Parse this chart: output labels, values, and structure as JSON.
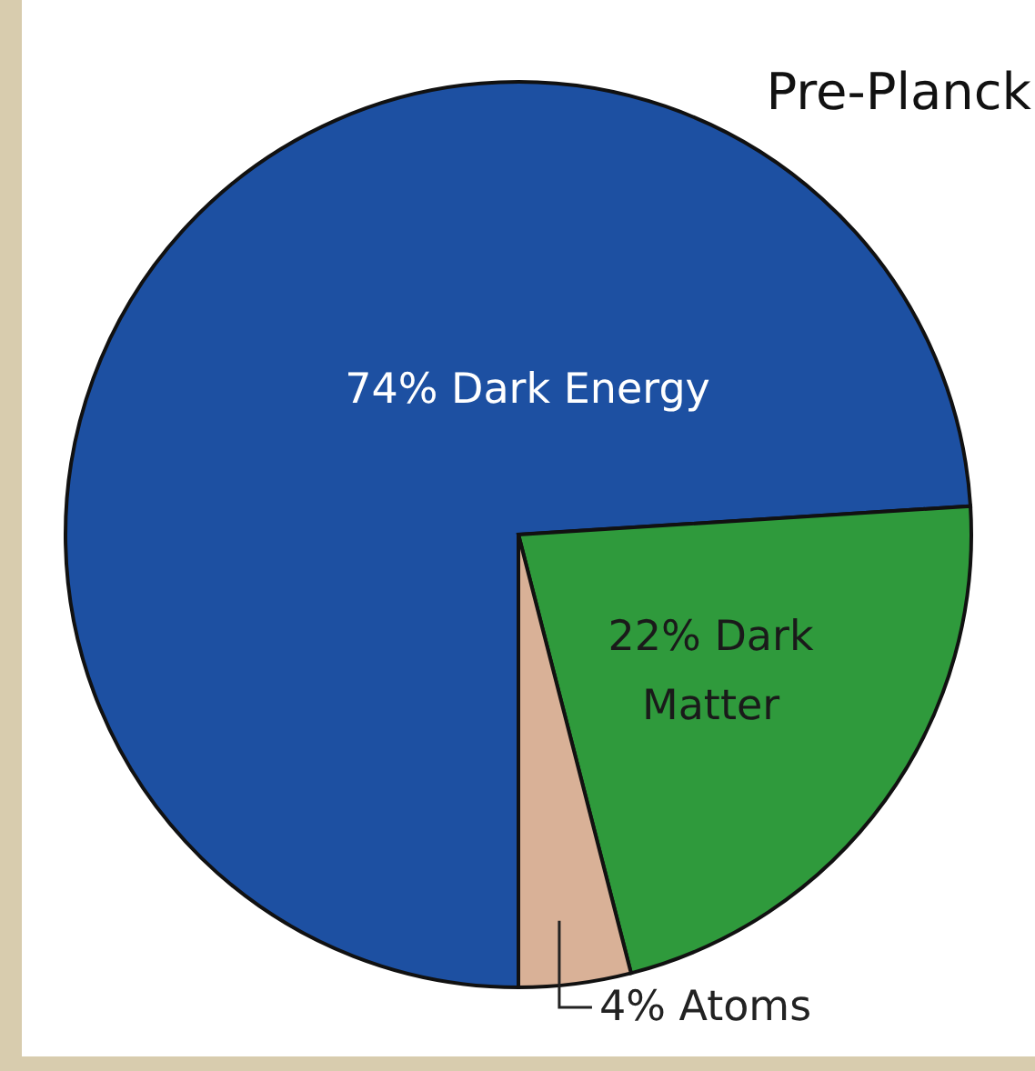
{
  "chart_data": {
    "type": "pie",
    "title": "Pre-Planck",
    "categories": [
      "74% Dark Energy",
      "22% Dark Matter",
      "4% Atoms"
    ],
    "values": [
      74,
      22,
      4
    ],
    "colors": [
      "#1d50a2",
      "#2f9a3c",
      "#d9b197"
    ]
  }
}
